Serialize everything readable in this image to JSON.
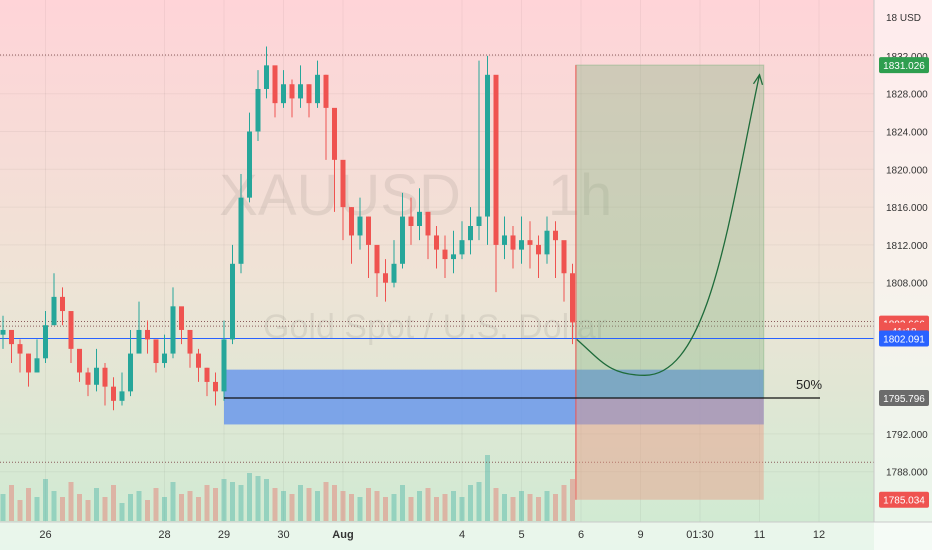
{
  "chart_data": {
    "type": "candlestick",
    "watermark": {
      "symbol": "XAUUSD",
      "timeframe": "1h",
      "description": "Gold Spot / U.S. Dollar"
    },
    "currency_label": "18 USD",
    "y_ticks": [
      "1832.000",
      "1828.000",
      "1824.000",
      "1820.000",
      "1816.000",
      "1812.000",
      "1808.000",
      "1792.000",
      "1788.000"
    ],
    "y_tick_values": [
      1832,
      1828,
      1824,
      1820,
      1816,
      1812,
      1808,
      1792,
      1788
    ],
    "x_ticks": [
      {
        "label": "26",
        "bar": 5,
        "bold": false
      },
      {
        "label": "28",
        "bar": 19,
        "bold": false
      },
      {
        "label": "29",
        "bar": 26,
        "bold": false
      },
      {
        "label": "30",
        "bar": 33,
        "bold": false
      },
      {
        "label": "Aug",
        "bar": 40,
        "bold": true
      },
      {
        "label": "4",
        "bar": 54,
        "bold": false
      },
      {
        "label": "5",
        "bar": 61,
        "bold": false
      },
      {
        "label": "6",
        "bar": 68,
        "bold": false
      },
      {
        "label": "9",
        "bar": 75,
        "bold": false
      },
      {
        "label": "01:30",
        "bar": 82,
        "bold": false
      },
      {
        "label": "11",
        "bar": 89,
        "bold": false
      },
      {
        "label": "12",
        "bar": 96,
        "bold": false
      }
    ],
    "price_labels": [
      {
        "text": "1831.026",
        "value": 1831.026,
        "color": "#2e9e4f"
      },
      {
        "text": "1803.666",
        "value": 1803.666,
        "color": "#ef5350"
      },
      {
        "text": "41:18",
        "value": 1802.9,
        "color": "#ef5350"
      },
      {
        "text": "1802.091",
        "value": 1802.091,
        "color": "#2962ff"
      },
      {
        "text": "1795.796",
        "value": 1795.796,
        "color": "#6b6b6b"
      },
      {
        "text": "1785.034",
        "value": 1785.034,
        "color": "#ef5350"
      }
    ],
    "horizontal_lines": {
      "top_dotted": 1832.1,
      "bottom_dotted": 1789.0,
      "blue_line": 1802.091,
      "dotted_current": [
        1803.9,
        1803.4
      ]
    },
    "zone": {
      "top": 1798.8,
      "bottom": 1793.0,
      "mid": 1795.796,
      "start_bar": 26,
      "end_bar": 89.5,
      "mid_label": "50%"
    },
    "position": {
      "start_bar": 67.4,
      "end_bar": 89.5,
      "entry": 1795.796,
      "target": 1831.026,
      "stop": 1785.034
    },
    "projection": {
      "start": [
        67.5,
        1802.0
      ],
      "low": [
        75.5,
        1798.2
      ],
      "end": [
        89.0,
        1830.0
      ]
    },
    "candles": {
      "closes": [
        1803,
        1801.5,
        1800.5,
        1798.5,
        1800,
        1803.5,
        1806.5,
        1805,
        1801,
        1798.5,
        1797.2,
        1799,
        1797,
        1795.5,
        1796.5,
        1800.5,
        1803,
        1802,
        1799.5,
        1800.5,
        1805.5,
        1803,
        1800.5,
        1799,
        1797.5,
        1796.5,
        1802,
        1810,
        1817,
        1824,
        1828.5,
        1831,
        1827,
        1829,
        1827.5,
        1829,
        1827,
        1830,
        1826.5,
        1821,
        1816,
        1813,
        1815,
        1812,
        1809,
        1808,
        1810,
        1815,
        1814,
        1815.5,
        1813,
        1811.5,
        1810.5,
        1811,
        1812.5,
        1814,
        1815,
        1830,
        1812,
        1813,
        1811.5,
        1812.5,
        1812,
        1811,
        1813.5,
        1812.5,
        1809,
        1803.8
      ],
      "highs": [
        1804.5,
        1803,
        1802,
        1800.5,
        1802,
        1805,
        1809,
        1807.5,
        1803,
        1800.5,
        1799,
        1801,
        1799.5,
        1798,
        1798.5,
        1803,
        1806,
        1804,
        1801,
        1802.5,
        1807.5,
        1805,
        1802.5,
        1801,
        1799,
        1798.5,
        1804,
        1812,
        1819.5,
        1826,
        1830.5,
        1833,
        1830,
        1830.5,
        1829.5,
        1831,
        1829,
        1831.5,
        1830,
        1824,
        1819.5,
        1816,
        1817,
        1815,
        1811.5,
        1810.5,
        1812.5,
        1817.5,
        1817,
        1818,
        1815.5,
        1814,
        1813,
        1813.5,
        1814.5,
        1816,
        1831.5,
        1832,
        1814.5,
        1815,
        1814,
        1815,
        1814.5,
        1813,
        1815,
        1814.5,
        1811.5,
        1810
      ],
      "lows": [
        1801,
        1799.5,
        1798.5,
        1797,
        1798.5,
        1799.5,
        1804,
        1803.5,
        1799.5,
        1797.5,
        1796,
        1796.5,
        1795,
        1794.5,
        1795,
        1796,
        1801.5,
        1800.5,
        1798.5,
        1799,
        1800,
        1801.5,
        1799,
        1797.5,
        1796,
        1795,
        1795.5,
        1801.5,
        1809,
        1816.5,
        1823,
        1827.5,
        1825.5,
        1826.5,
        1825.5,
        1826.5,
        1825.5,
        1826.5,
        1821,
        1815.5,
        1812.5,
        1810,
        1811.5,
        1808.5,
        1806.5,
        1806,
        1807.5,
        1809.5,
        1812,
        1812.5,
        1810.5,
        1809.5,
        1808.5,
        1809,
        1810.5,
        1811,
        1812.5,
        1812,
        1807,
        1810.5,
        1809.5,
        1810,
        1809.5,
        1808.5,
        1810,
        1808.5,
        1806,
        1801.5
      ]
    },
    "volumes": [
      0.35,
      0.5,
      0.25,
      0.45,
      0.3,
      0.6,
      0.4,
      0.3,
      0.55,
      0.35,
      0.25,
      0.45,
      0.3,
      0.5,
      0.2,
      0.35,
      0.4,
      0.25,
      0.45,
      0.3,
      0.55,
      0.35,
      0.4,
      0.3,
      0.5,
      0.45,
      0.6,
      0.55,
      0.5,
      0.7,
      0.65,
      0.6,
      0.45,
      0.4,
      0.35,
      0.5,
      0.45,
      0.4,
      0.55,
      0.5,
      0.4,
      0.35,
      0.3,
      0.45,
      0.4,
      0.3,
      0.35,
      0.5,
      0.3,
      0.4,
      0.45,
      0.3,
      0.35,
      0.4,
      0.3,
      0.5,
      0.55,
      1.0,
      0.45,
      0.35,
      0.3,
      0.4,
      0.35,
      0.3,
      0.4,
      0.35,
      0.5,
      0.6
    ],
    "colors": {
      "up": "#26a69a",
      "down": "#ef5350",
      "blue_line": "#2962ff",
      "zone": "#5b8def",
      "projection": "#1e6b3a"
    }
  }
}
